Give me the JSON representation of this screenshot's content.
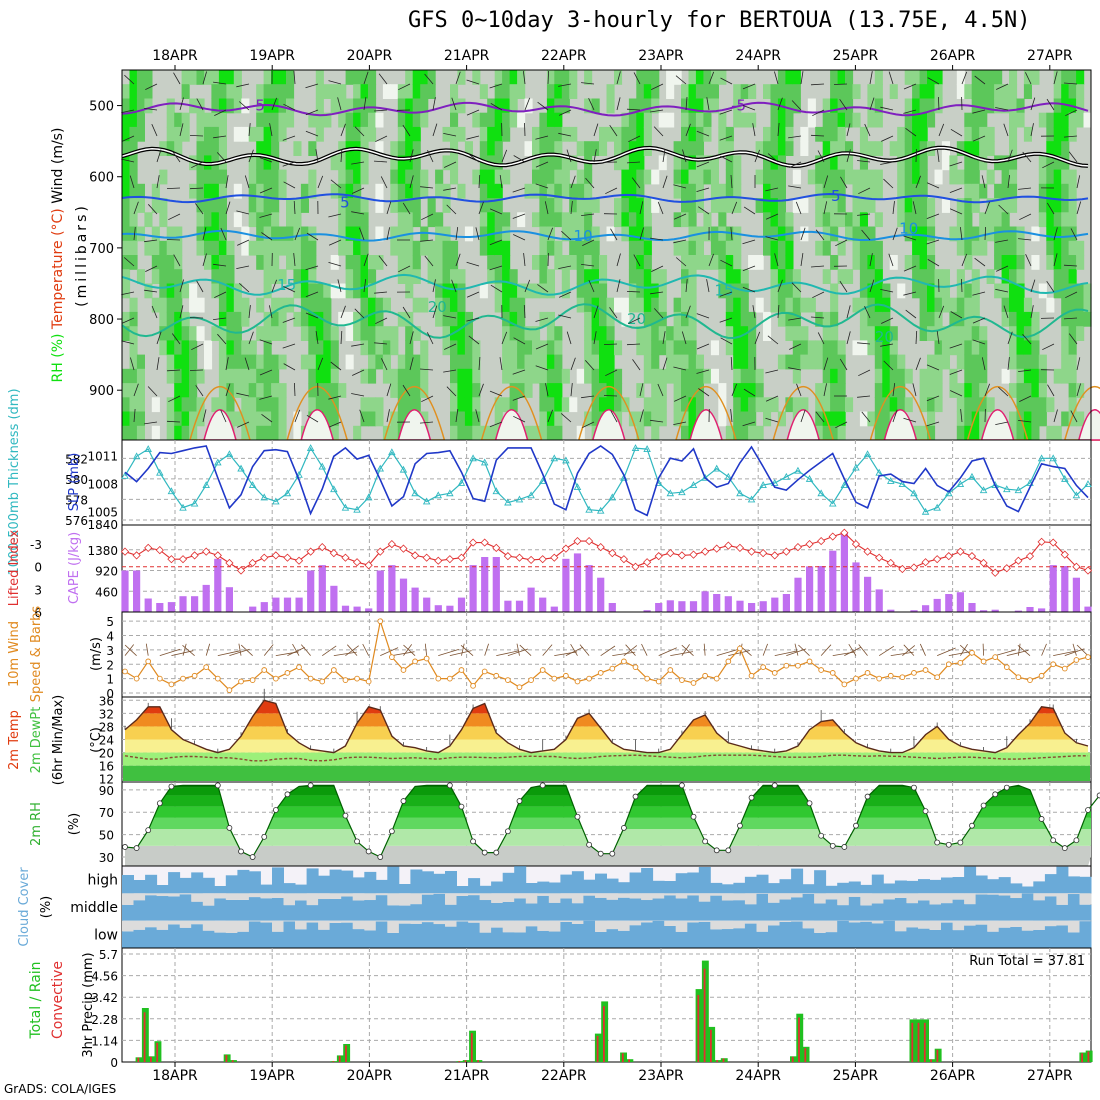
{
  "title": "GFS 0~10day 3-hourly for BERTOUA (13.75E, 4.5N)",
  "credit": "GrADS: COLA/IGES",
  "run_total": "Run Total = 37.81",
  "colors": {
    "frame": "#000000",
    "grid": "#aaaaaa",
    "rh_light": "#f0f5ee",
    "rh_grey": "#c8cfc6",
    "rh_mid": "#8ed68a",
    "rh_green": "#5cc75a",
    "rh_bright": "#10e010",
    "temp_neg5": "#7f1fbf",
    "temp_5": "#2050e0",
    "temp_10": "#1a90e0",
    "temp_15": "#20b8b0",
    "temp_20": "#20b890",
    "temp_25": "#e09020",
    "temp_30": "#e02070",
    "zero": "#000000",
    "thickness": "#30b8c0",
    "slp": "#2038c8",
    "li": "#e03030",
    "cape": "#c070f0",
    "wind10": "#e08a20",
    "barb": "#7a5030",
    "temp_hot": "#e03c10",
    "temp_warm": "#f08a20",
    "temp_mild": "#f8d050",
    "temp_pale": "#f8f090",
    "dew_green": "#40c040",
    "rh_dark": "#009000",
    "cloud_blue": "#6aaad8",
    "cloud_clear": "#f4f2f8",
    "cloud_grey": "#dcdcdc",
    "precip_total": "#20c020",
    "precip_conv": "#e03030"
  },
  "chart_data": [
    {
      "panel": "upper_air",
      "type": "heatmap",
      "days": [
        "18APR",
        "19APR",
        "20APR",
        "21APR",
        "22APR",
        "23APR",
        "24APR",
        "25APR",
        "26APR",
        "27APR"
      ],
      "ylabel": "(millibars)",
      "label_parts": [
        "RH (%)",
        "Temperature (°C)",
        "Wind (m/s)"
      ],
      "y_ticks": [
        500,
        600,
        700,
        800,
        900
      ],
      "ylim": [
        970,
        450
      ],
      "contour_labels": [
        {
          "text": "-5",
          "day": 0.9,
          "p": 500
        },
        {
          "text": "-5",
          "day": 5.85,
          "p": 500
        },
        {
          "text": "5",
          "day": 1.8,
          "p": 636
        },
        {
          "text": "5",
          "day": 6.85,
          "p": 627
        },
        {
          "text": "10",
          "day": 4.25,
          "p": 683
        },
        {
          "text": "10",
          "day": 7.6,
          "p": 673
        },
        {
          "text": "15",
          "day": 1.2,
          "p": 752
        },
        {
          "text": "15",
          "day": 5.7,
          "p": 760
        },
        {
          "text": "20",
          "day": 2.75,
          "p": 783
        },
        {
          "text": "20",
          "day": 4.8,
          "p": 800
        },
        {
          "text": "20",
          "day": 7.35,
          "p": 825
        }
      ],
      "isotherms": [
        {
          "level": -5,
          "base": 505,
          "amp": 9
        },
        {
          "level": 0,
          "base": 572,
          "amp": 13
        },
        {
          "level": 5,
          "base": 630,
          "amp": 6
        },
        {
          "level": 10,
          "base": 683,
          "amp": 7
        },
        {
          "level": 15,
          "base": 752,
          "amp": 14
        },
        {
          "level": 20,
          "base": 803,
          "amp": 24
        }
      ],
      "rh_scale_percent": [
        30,
        50,
        70,
        90
      ]
    },
    {
      "panel": "thickness_slp",
      "type": "line",
      "label_parts": [
        "1000-500mb Thickness (dm)",
        "SLP (mb)"
      ],
      "y_ticks_left": [
        576,
        578,
        580,
        582
      ],
      "y_ticks_right": [
        1005,
        1008,
        1011
      ],
      "bottom_tick": "1840",
      "series": [
        {
          "name": "SLP (mb)",
          "ylim": [
            1004.0,
            1012.0
          ],
          "values": [
            1009.2,
            1008.2,
            1009.6,
            1011.3,
            1011.2,
            1011.5,
            1011.8,
            1012.0,
            1008.6,
            1005.4,
            1006.8,
            1009.8,
            1011.5,
            1011.6,
            1011.4,
            1008.4,
            1004.8,
            1007.4,
            1010.9,
            1011.8,
            1010.6,
            1011.0,
            1008.4,
            1005.6,
            1006.6,
            1010.1,
            1011.2,
            1011.3,
            1011.5,
            1009.2,
            1006.4,
            1006.1,
            1010.5,
            1011.8,
            1011.8,
            1011.8,
            1009.0,
            1005.8,
            1005.2,
            1009.1,
            1011.2,
            1012.0,
            1011.1,
            1008.9,
            1005.2,
            1004.6,
            1008.6,
            1010.7,
            1010.4,
            1011.7,
            1008.6,
            1007.6,
            1008.0,
            1010.2,
            1011.9,
            1009.8,
            1007.6,
            1007.3,
            1008.4,
            1009.4,
            1010.3,
            1011.2,
            1008.5,
            1006.0,
            1005.4,
            1008.8,
            1009.0,
            1008.2,
            1008.0,
            1009.6,
            1007.8,
            1007.1,
            1008.6,
            1010.4,
            1010.7,
            1007.8,
            1005.6,
            1005.0,
            1007.6,
            1010.1,
            1009.8,
            1009.6,
            1007.8,
            1006.5
          ]
        },
        {
          "name": "Thickness (dm)",
          "ylim": [
            575.9,
            583.2
          ],
          "values": [
            580.3,
            582.2,
            582.9,
            580.6,
            578.8,
            577.2,
            577.6,
            579.4,
            581.6,
            582.4,
            581.0,
            579.4,
            578.2,
            577.8,
            578.6,
            580.4,
            583.0,
            581.2,
            579.0,
            577.2,
            577.0,
            578.2,
            581.0,
            582.6,
            580.9,
            578.6,
            577.8,
            578.4,
            578.6,
            579.6,
            582.0,
            581.6,
            578.8,
            577.7,
            578.0,
            578.4,
            579.8,
            582.0,
            581.8,
            579.2,
            577.0,
            576.9,
            578.2,
            580.1,
            583.0,
            582.9,
            579.6,
            578.6,
            578.7,
            579.4,
            580.1,
            581.0,
            580.2,
            578.6,
            578.0,
            579.4,
            579.6,
            580.2,
            580.8,
            580.0,
            578.6,
            577.6,
            579.4,
            581.1,
            582.4,
            580.6,
            579.8,
            579.5,
            578.6,
            576.8,
            577.2,
            578.6,
            579.5,
            580.2,
            578.9,
            579.4,
            579.0,
            578.9,
            579.6,
            582.0,
            582.0,
            580.0,
            578.4,
            579.5
          ]
        }
      ]
    },
    {
      "panel": "instability",
      "type": "bar",
      "label_parts": [
        "Lifted Index",
        "CAPE (J/kg)"
      ],
      "y_ticks_left": [
        "-3",
        "0",
        "3",
        "6"
      ],
      "y_ticks_right": [
        "460",
        "920",
        "1380"
      ],
      "series": [
        {
          "name": "CAPE (J/kg)",
          "ylim": [
            0,
            1840
          ],
          "values": [
            920,
            920,
            300,
            200,
            220,
            350,
            350,
            600,
            1180,
            550,
            0,
            120,
            220,
            320,
            320,
            320,
            920,
            1040,
            580,
            140,
            120,
            80,
            920,
            1040,
            740,
            540,
            320,
            150,
            140,
            320,
            1040,
            1220,
            1220,
            250,
            250,
            540,
            320,
            120,
            1180,
            1300,
            1040,
            760,
            200,
            10,
            0,
            40,
            200,
            260,
            240,
            240,
            460,
            400,
            350,
            250,
            200,
            240,
            320,
            400,
            760,
            1010,
            1020,
            1360,
            1740,
            1100,
            780,
            500,
            50,
            0,
            40,
            150,
            290,
            400,
            440,
            200,
            40,
            50,
            10,
            30,
            110,
            80,
            1040,
            1020,
            760,
            120
          ]
        },
        {
          "name": "Lifted Index",
          "ylim": [
            6,
            -5
          ],
          "values": [
            -2.0,
            -1.5,
            -2.5,
            -2.2,
            -1.0,
            -1.0,
            -1.5,
            -2.0,
            -1.5,
            -0.5,
            0.5,
            -0.5,
            -1.2,
            -1.5,
            -1.2,
            -0.8,
            -2.0,
            -2.6,
            -1.8,
            -1.2,
            -0.6,
            -0.2,
            -2.0,
            -3.0,
            -2.4,
            -1.5,
            -1.2,
            -0.8,
            -1.0,
            -1.2,
            -3.2,
            -3.2,
            -2.5,
            -1.4,
            -1.2,
            -0.9,
            -1.0,
            -1.2,
            -2.4,
            -3.4,
            -3.4,
            -2.6,
            -1.8,
            -1.0,
            0.0,
            -0.6,
            -1.4,
            -1.8,
            -1.5,
            -1.6,
            -2.0,
            -2.4,
            -2.8,
            -2.5,
            -2.0,
            -1.8,
            -1.5,
            -2.0,
            -2.6,
            -3.0,
            -3.4,
            -4.0,
            -4.5,
            -3.0,
            -2.0,
            -1.2,
            -0.5,
            0.3,
            0.1,
            -0.6,
            -1.0,
            -1.4,
            -2.0,
            -1.4,
            -0.5,
            0.8,
            0.2,
            -0.8,
            -1.4,
            -3.3,
            -3.2,
            -1.6,
            0.0,
            0.5
          ]
        }
      ]
    },
    {
      "panel": "wind10m",
      "type": "line",
      "label_parts": [
        "10m Wind",
        "Speed & Barbs",
        "(m/s)"
      ],
      "y_ticks": [
        0,
        1,
        2,
        3,
        4,
        5
      ],
      "ylim": [
        0,
        5.5
      ],
      "values": [
        1.5,
        1.0,
        2.2,
        1.0,
        0.6,
        1.0,
        1.2,
        1.8,
        1.0,
        0.2,
        0.8,
        0.9,
        1.6,
        1.0,
        1.4,
        1.8,
        1.0,
        0.8,
        1.6,
        0.9,
        1.0,
        0.8,
        5.0,
        2.5,
        1.6,
        2.2,
        2.4,
        1.0,
        1.0,
        1.6,
        0.5,
        1.5,
        1.2,
        0.9,
        0.4,
        0.9,
        1.6,
        1.0,
        1.2,
        0.8,
        1.0,
        1.4,
        1.7,
        2.2,
        1.8,
        1.0,
        0.8,
        1.6,
        0.9,
        0.7,
        1.2,
        1.0,
        2.2,
        3.1,
        1.2,
        1.8,
        1.4,
        1.9,
        1.9,
        2.2,
        1.6,
        1.4,
        0.6,
        1.0,
        1.4,
        1.0,
        1.2,
        1.1,
        1.4,
        1.6,
        1.1,
        2.0,
        2.1,
        2.8,
        2.2,
        2.5,
        1.8,
        1.1,
        0.9,
        1.2,
        2.0,
        1.7,
        2.3,
        2.5
      ]
    },
    {
      "panel": "temp2m",
      "type": "area",
      "label_parts": [
        "2m Temp",
        "2m DewPt",
        "(6hr Min/Max)",
        "(°C)"
      ],
      "y_ticks": [
        12,
        16,
        20,
        24,
        28,
        32,
        36
      ],
      "ylim": [
        11,
        37
      ],
      "temp": [
        27.0,
        30.0,
        34.0,
        34.0,
        27.0,
        24.0,
        22.5,
        21.0,
        20.0,
        21.0,
        25.0,
        31.0,
        36.0,
        35.0,
        26.0,
        23.0,
        21.0,
        20.5,
        20.0,
        22.0,
        29.0,
        34.0,
        33.0,
        25.0,
        22.0,
        21.5,
        20.5,
        20.0,
        22.0,
        27.0,
        33.5,
        35.0,
        26.0,
        23.0,
        21.0,
        20.0,
        20.5,
        21.0,
        24.0,
        30.5,
        32.0,
        27.5,
        23.0,
        21.0,
        20.5,
        20.0,
        20.0,
        21.0,
        25.5,
        30.0,
        31.5,
        26.0,
        23.0,
        22.0,
        21.0,
        20.5,
        20.0,
        20.5,
        22.0,
        27.0,
        29.5,
        30.0,
        26.0,
        23.0,
        21.5,
        20.5,
        20.0,
        20.0,
        21.5,
        25.5,
        28.0,
        24.0,
        22.0,
        21.0,
        20.5,
        20.0,
        21.5,
        25.5,
        29.0,
        34.0,
        33.5,
        26.0,
        23.0,
        22.0
      ],
      "dewpoint": [
        19.0,
        18.5,
        18.0,
        18.0,
        18.5,
        18.8,
        18.8,
        18.6,
        18.4,
        18.4,
        18.0,
        17.5,
        17.5,
        18.0,
        18.2,
        18.2,
        17.6,
        17.5,
        17.8,
        18.4,
        18.6,
        18.6,
        18.4,
        18.2,
        18.3,
        18.4,
        18.2,
        18.0,
        18.4,
        18.6,
        18.6,
        18.5,
        18.4,
        18.6,
        18.8,
        18.9,
        18.8,
        18.8,
        18.4,
        18.2,
        18.4,
        18.8,
        19.0,
        19.1,
        19.2,
        19.0,
        18.8,
        18.6,
        18.4,
        18.6,
        19.0,
        19.2,
        19.2,
        19.2,
        19.2,
        19.0,
        18.8,
        18.6,
        18.6,
        18.6,
        18.8,
        19.2,
        19.2,
        19.0,
        18.9,
        19.0,
        18.9,
        18.8,
        18.6,
        18.4,
        18.2,
        18.4,
        18.6,
        18.6,
        18.4,
        18.2,
        18.0,
        18.0,
        18.2,
        18.4,
        18.6,
        18.8,
        19.0,
        19.0
      ]
    },
    {
      "panel": "rh2m",
      "type": "area",
      "label_parts": [
        "2m RH",
        "(%)"
      ],
      "y_ticks": [
        30,
        50,
        70,
        90
      ],
      "ylim": [
        22,
        97
      ],
      "values": [
        39,
        38,
        54,
        78,
        93,
        94,
        94,
        94,
        94,
        56,
        35,
        30,
        48,
        72,
        86,
        93,
        94,
        94,
        94,
        67,
        44,
        35,
        30,
        53,
        80,
        93,
        94,
        94,
        94,
        75,
        44,
        34,
        34,
        53,
        80,
        92,
        94,
        94,
        94,
        66,
        41,
        33,
        33,
        56,
        84,
        94,
        94,
        94,
        94,
        66,
        44,
        36,
        36,
        58,
        83,
        94,
        94,
        94,
        94,
        78,
        49,
        40,
        39,
        58,
        84,
        94,
        94,
        94,
        92,
        71,
        43,
        41,
        43,
        58,
        76,
        86,
        92,
        94,
        90,
        64,
        45,
        38,
        45,
        72,
        85,
        87
      ]
    },
    {
      "panel": "cloud_cover",
      "type": "bar",
      "label_parts": [
        "Cloud Cover",
        "(%)"
      ],
      "levels": [
        "high",
        "middle",
        "low"
      ]
    },
    {
      "panel": "precip",
      "type": "bar",
      "label_parts": [
        "Total / Rain",
        "Convective"
      ],
      "ylabel": "3hr Precip (mm)",
      "y_ticks": [
        "0",
        "1.14",
        "2.28",
        "3.42",
        "4.56",
        "5.7"
      ],
      "ylim": [
        0,
        5.7
      ],
      "totals": [
        0,
        0,
        0.25,
        2.85,
        0.3,
        1.1,
        0,
        0,
        0,
        0,
        0,
        0,
        0,
        0,
        0,
        0,
        0.4,
        0.1,
        0,
        0,
        0,
        0,
        0,
        0,
        0,
        0,
        0,
        0,
        0,
        0,
        0,
        0,
        0,
        0.05,
        0.35,
        0.95,
        0,
        0,
        0,
        0,
        0,
        0,
        0,
        0,
        0,
        0,
        0,
        0,
        0,
        0,
        0,
        0,
        0,
        0.05,
        0.1,
        1.65,
        0.1,
        0,
        0,
        0,
        0,
        0,
        0,
        0,
        0,
        0,
        0,
        0,
        0,
        0,
        0,
        0,
        0,
        0,
        0,
        1.5,
        3.2,
        0,
        0,
        0.5,
        0.15,
        0,
        0,
        0,
        0,
        0,
        0,
        0,
        0,
        0,
        0,
        3.85,
        5.35,
        1.85,
        0.1,
        0.2,
        0,
        0,
        0,
        0,
        0,
        0,
        0,
        0,
        0,
        0,
        0.3,
        2.55,
        0.8,
        0,
        0,
        0,
        0,
        0,
        0,
        0,
        0,
        0,
        0,
        0,
        0,
        0,
        0,
        0,
        0,
        2.25,
        2.25,
        2.25,
        0.15,
        0.7,
        0,
        0,
        0,
        0,
        0,
        0,
        0,
        0,
        0,
        0,
        0,
        0,
        0,
        0,
        0,
        0,
        0,
        0,
        0,
        0,
        0,
        0,
        0.5,
        0.6
      ]
    }
  ]
}
